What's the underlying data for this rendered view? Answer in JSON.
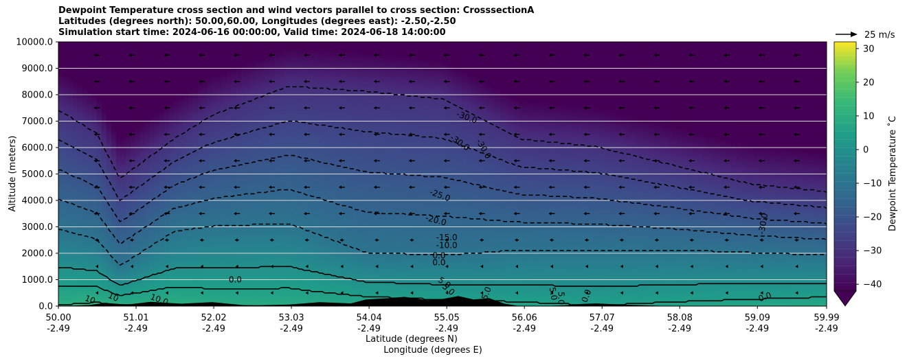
{
  "title_lines": [
    "Dewpoint Temperature cross section and wind vectors parallel to cross section: CrosssectionA",
    "Latitudes (degrees north): 50.00,60.00, Longitudes (degrees east): -2.50,-2.50",
    "Simulation start time: 2024-06-16 00:00:00, Valid time: 2024-06-18 14:00:00"
  ],
  "ylabel": "Altitude (meters)",
  "xlabel_lat": "Latitude (degrees N)",
  "xlabel_lon": "Longitude (degrees E)",
  "quiver_key": "25 m/s",
  "colorbar_label": "Dewpoint Temperature ˚C",
  "colors": {
    "colormap": "viridis",
    "terrain": "#000000",
    "contour_line": "#000000",
    "gridline": "#d9d9d9"
  },
  "chart_data": {
    "type": "heatmap",
    "xlim": [
      50.0,
      59.99
    ],
    "ylim": [
      0,
      10000
    ],
    "x_ticks": [
      {
        "lat": "50.00",
        "lon": "-2.49"
      },
      {
        "lat": "51.01",
        "lon": "-2.49"
      },
      {
        "lat": "52.02",
        "lon": "-2.49"
      },
      {
        "lat": "53.03",
        "lon": "-2.49"
      },
      {
        "lat": "54.04",
        "lon": "-2.49"
      },
      {
        "lat": "55.05",
        "lon": "-2.49"
      },
      {
        "lat": "56.06",
        "lon": "-2.49"
      },
      {
        "lat": "57.07",
        "lon": "-2.49"
      },
      {
        "lat": "58.08",
        "lon": "-2.49"
      },
      {
        "lat": "59.09",
        "lon": "-2.49"
      },
      {
        "lat": "59.99",
        "lon": "-2.49"
      }
    ],
    "y_ticks": [
      "0.0",
      "1000.0",
      "2000.0",
      "3000.0",
      "4000.0",
      "5000.0",
      "6000.0",
      "7000.0",
      "8000.0",
      "9000.0",
      "10000.0"
    ],
    "grid": true,
    "colorbar": {
      "min": -42,
      "max": 32,
      "ticks": [
        -40,
        -30,
        -20,
        -10,
        0,
        10,
        20,
        30
      ],
      "extend": "min"
    },
    "contour_levels_dashed": [
      -30,
      -25,
      -20,
      -15,
      -10
    ],
    "contour_levels_solid": [
      0,
      5,
      10
    ],
    "contour_labels": [
      "-30.0",
      "-30.0",
      "-30.0",
      "-30.0",
      "-25.0",
      "-20.0",
      "-15.0",
      "-10.0",
      "0.0",
      "0.0",
      "0.0",
      "5.0",
      "5.0",
      "5.0",
      "5.0",
      "5.0",
      "0.0",
      "0.0",
      "10",
      "10",
      "10.0"
    ],
    "dewpoint_profile": {
      "x": [
        50.0,
        50.5,
        50.8,
        51.5,
        52.0,
        53.0,
        54.0,
        55.0,
        56.0,
        57.0,
        58.0,
        59.0,
        59.99
      ],
      "height_of_minus10C": [
        2900,
        2500,
        1500,
        2800,
        3000,
        3100,
        2000,
        1900,
        2100,
        2100,
        2100,
        2000,
        1900
      ],
      "height_of_minus30C": [
        7400,
        6500,
        4800,
        6300,
        7200,
        8300,
        8100,
        7800,
        6300,
        6000,
        5300,
        4600,
        4300
      ],
      "surface_dewpoint": [
        10,
        11,
        10,
        10,
        9,
        9,
        8,
        7,
        6,
        5,
        6,
        7,
        8
      ]
    },
    "wind_vectors": "easterly (pointing left) throughout, strongest ~25 m/s at upper levels, weaker below 2000 m"
  }
}
